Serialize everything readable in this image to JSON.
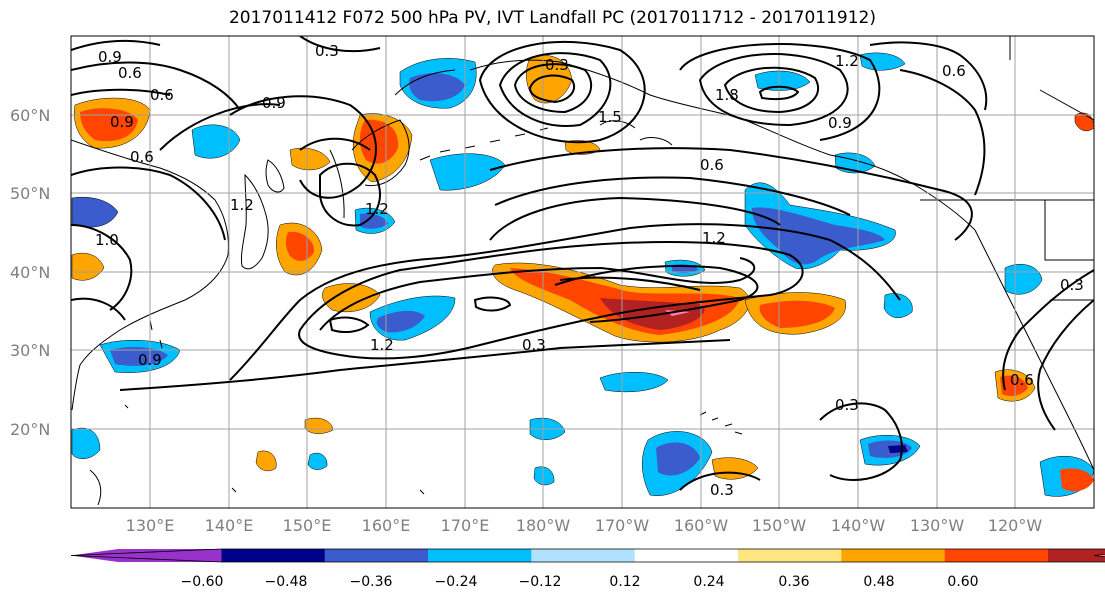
{
  "title": "2017011412 F072 500 hPa PV, IVT Landfall PC (2017011712 - 2017011912)",
  "lat_labels": [
    "60°N",
    "50°N",
    "40°N",
    "30°N",
    "20°N"
  ],
  "lon_labels": [
    "130°E",
    "140°E",
    "150°E",
    "160°E",
    "170°E",
    "180°W",
    "170°W",
    "160°W",
    "150°W",
    "140°W",
    "130°W",
    "120°W"
  ],
  "colorbar": {
    "colors": [
      "#9932cc",
      "#00008b",
      "#3a5ccc",
      "#00bfff",
      "#b0e2ff",
      "#ffffff",
      "#ffe680",
      "#ffa500",
      "#ff4500",
      "#b22222",
      "#ff82ab"
    ],
    "labels": [
      "−0.60",
      "−0.48",
      "−0.36",
      "−0.24",
      "−0.12",
      "0.12",
      "0.24",
      "0.36",
      "0.48",
      "0.60"
    ]
  },
  "contour_labels": [
    "0.9",
    "0.6",
    "0.3",
    "0.6",
    "0.9",
    "0.9",
    "0.6",
    "1.2",
    "1.5",
    "1.8",
    "1.2",
    "0.9",
    "0.6",
    "0.6",
    "1.2",
    "1.2",
    "0.3",
    "1.2",
    "0.3",
    "0.3",
    "0.3",
    "0.3",
    "0.6",
    "0.9",
    "1.0"
  ]
}
